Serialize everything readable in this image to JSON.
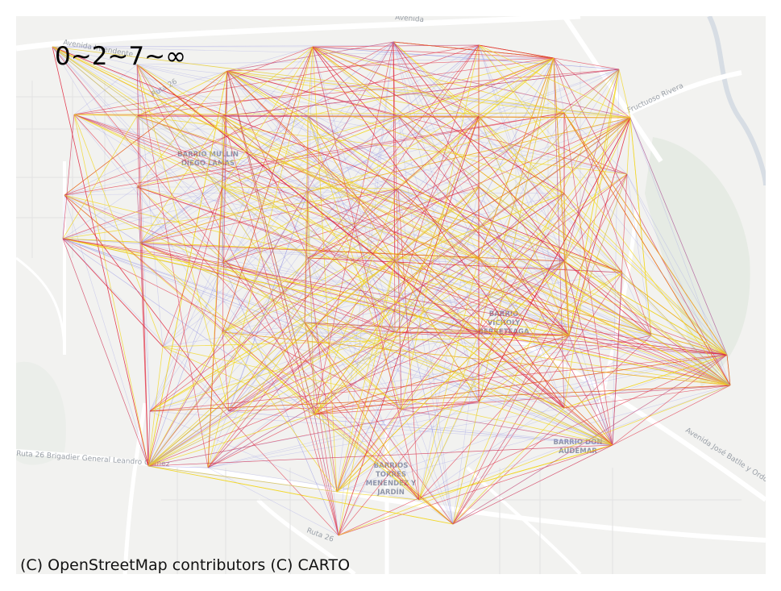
{
  "map": {
    "legend_title": "0~2~7~∞",
    "attribution": "(C) OpenStreetMap contributors (C) CARTO",
    "colors": {
      "background": "#f2f2f0",
      "road": "#ffffff",
      "park": "#e6ebe4",
      "water": "#d7dde4",
      "class_low": "#8f8fe6",
      "class_mid": "#f1d51c",
      "class_high": "#e0243a"
    },
    "street_labels": [
      "Avenida Intendente",
      "Avenida",
      "Fructuoso Rivera",
      "Ruta 26 Brigadier General Leandro Gómez",
      "Ruta 26",
      "Avenida José Batlle y Ordóñez",
      "Ruta 26"
    ],
    "district_labels": [
      {
        "lines": [
          "BARRIO MULLIN",
          "DIEGO LAMAS"
        ]
      },
      {
        "lines": [
          "BARRIO",
          "VICHOLY",
          "BERRETEAGA"
        ]
      },
      {
        "lines": [
          "BARRIO DON",
          "AUDEMAR"
        ]
      },
      {
        "lines": [
          "BARRIOS",
          "TORRES",
          "MENENDEZ Y",
          "JARDÍN"
        ]
      }
    ]
  }
}
